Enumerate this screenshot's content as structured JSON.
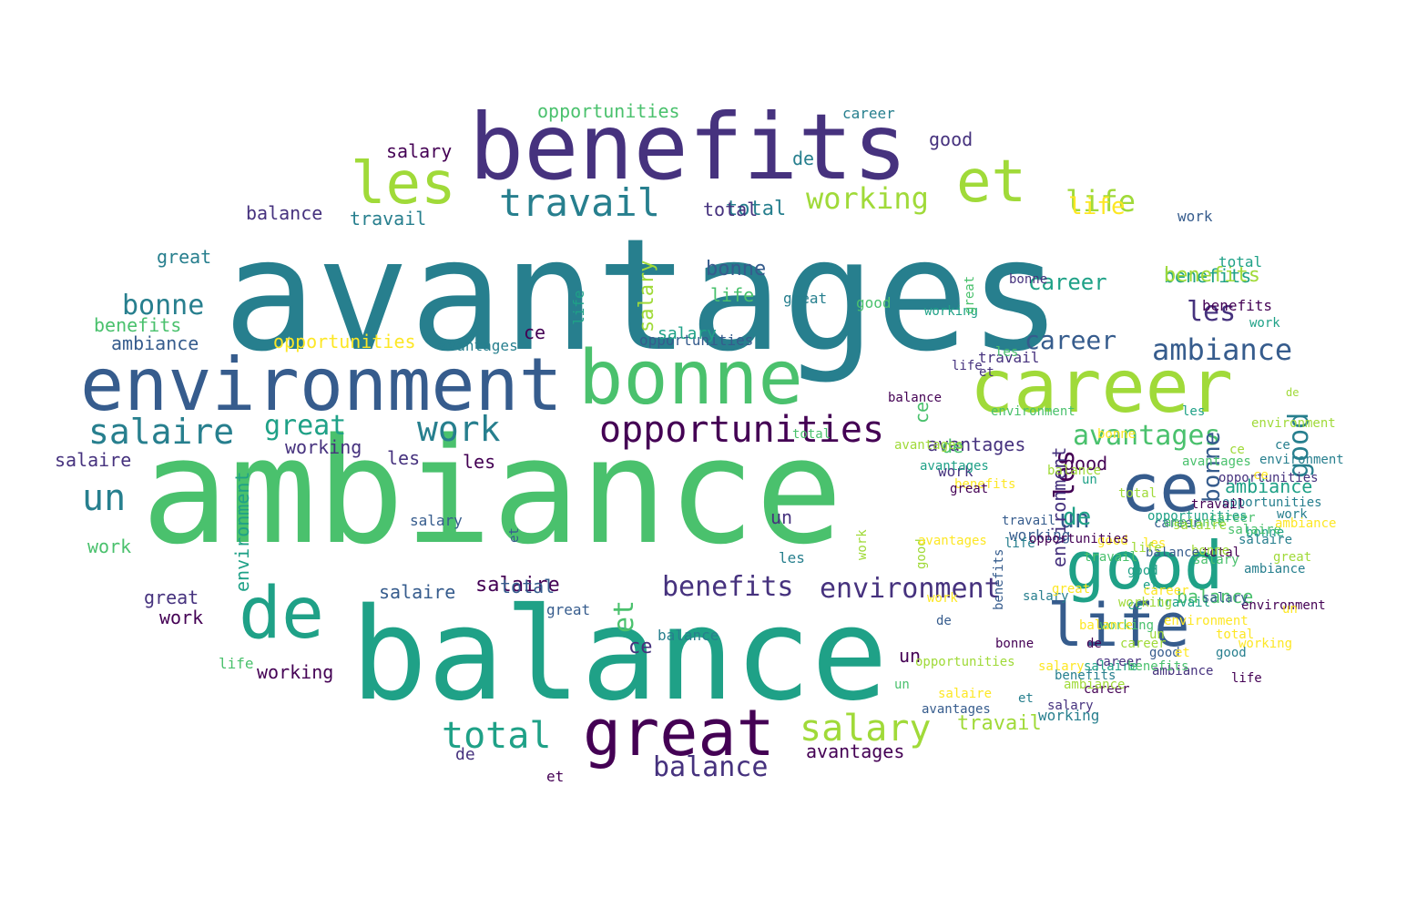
{
  "palette": [
    "#440154",
    "#46327e",
    "#365c8d",
    "#277f8e",
    "#1fa187",
    "#4ac16d",
    "#a0da39",
    "#fde725"
  ],
  "words": [
    {
      "text": "avantages",
      "c": 3
    },
    {
      "text": "ambiance",
      "c": 5
    },
    {
      "text": "balance",
      "c": 4
    },
    {
      "text": "benefits",
      "c": 1
    },
    {
      "text": "environment",
      "c": 2
    },
    {
      "text": "bonne",
      "c": 5
    },
    {
      "text": "career",
      "c": 6
    },
    {
      "text": "great",
      "c": 0
    },
    {
      "text": "good",
      "c": 4
    },
    {
      "text": "life",
      "c": 2
    },
    {
      "text": "ce",
      "c": 2
    },
    {
      "text": "de",
      "c": 4
    },
    {
      "text": "les",
      "c": 6
    },
    {
      "text": "et",
      "c": 6
    },
    {
      "text": "opportunities",
      "c": 0
    },
    {
      "text": "travail",
      "c": 3
    },
    {
      "text": "work",
      "c": 3
    },
    {
      "text": "salaire",
      "c": 3
    },
    {
      "text": "salary",
      "c": 6
    },
    {
      "text": "total",
      "c": 4
    },
    {
      "text": "working",
      "c": 6
    },
    {
      "text": "un",
      "c": 3
    },
    {
      "text": "ambiance",
      "c": 2
    },
    {
      "text": "avantages",
      "c": 5
    },
    {
      "text": "bonne",
      "c": 2
    },
    {
      "text": "life",
      "c": 6
    },
    {
      "text": "good",
      "c": 3
    },
    {
      "text": "career",
      "c": 2
    },
    {
      "text": "benefits",
      "c": 1
    },
    {
      "text": "environment",
      "c": 1
    },
    {
      "text": "les",
      "c": 1
    },
    {
      "text": "salaire",
      "c": 0
    },
    {
      "text": "salary",
      "c": 6
    },
    {
      "text": "opportunities",
      "c": 5
    },
    {
      "text": "travail",
      "c": 6
    },
    {
      "text": "work",
      "c": 5
    },
    {
      "text": "great",
      "c": 4
    },
    {
      "text": "balance",
      "c": 1
    },
    {
      "text": "total",
      "c": 3
    },
    {
      "text": "working",
      "c": 1
    },
    {
      "text": "avantages",
      "c": 1
    },
    {
      "text": "benefits",
      "c": 5
    },
    {
      "text": "career",
      "c": 4
    },
    {
      "text": "et",
      "c": 5
    },
    {
      "text": "un",
      "c": 2
    },
    {
      "text": "life",
      "c": 5
    },
    {
      "text": "les",
      "c": 0
    },
    {
      "text": "salary",
      "c": 0
    },
    {
      "text": "good",
      "c": 1
    },
    {
      "text": "balance",
      "c": 1
    },
    {
      "text": "de",
      "c": 3
    },
    {
      "text": "ce",
      "c": 0
    },
    {
      "text": "great",
      "c": 3
    },
    {
      "text": "work",
      "c": 0
    },
    {
      "text": "total",
      "c": 1
    },
    {
      "text": "bonne",
      "c": 3
    },
    {
      "text": "salaire",
      "c": 2
    },
    {
      "text": "ambiance",
      "c": 2
    },
    {
      "text": "environment",
      "c": 4
    },
    {
      "text": "opportunities",
      "c": 2
    },
    {
      "text": "career",
      "c": 3
    },
    {
      "text": "working",
      "c": 0
    },
    {
      "text": "avantages",
      "c": 0
    },
    {
      "text": "benefits",
      "c": 4
    },
    {
      "text": "travail",
      "c": 3
    },
    {
      "text": "salary",
      "c": 5
    },
    {
      "text": "good",
      "c": 0
    },
    {
      "text": "un",
      "c": 1
    },
    {
      "text": "les",
      "c": 0
    },
    {
      "text": "life",
      "c": 7
    },
    {
      "text": "de",
      "c": 4
    },
    {
      "text": "et",
      "c": 4
    },
    {
      "text": "ce",
      "c": 3
    },
    {
      "text": "great",
      "c": 1
    },
    {
      "text": "bonne",
      "c": 2
    },
    {
      "text": "work",
      "c": 2
    },
    {
      "text": "balance",
      "c": 5
    },
    {
      "text": "salaire",
      "c": 3
    },
    {
      "text": "total",
      "c": 2
    },
    {
      "text": "ambiance",
      "c": 4
    },
    {
      "text": "environment",
      "c": 1
    },
    {
      "text": "career",
      "c": 2
    },
    {
      "text": "salary",
      "c": 1
    },
    {
      "text": "working",
      "c": 2
    },
    {
      "text": "opportunities",
      "c": 7
    },
    {
      "text": "avantages",
      "c": 3
    },
    {
      "text": "benefits",
      "c": 6
    },
    {
      "text": "great",
      "c": 2
    },
    {
      "text": "good",
      "c": 2
    },
    {
      "text": "les",
      "c": 1
    },
    {
      "text": "life",
      "c": 5
    },
    {
      "text": "work",
      "c": 4
    },
    {
      "text": "travail",
      "c": 1
    },
    {
      "text": "un",
      "c": 0
    },
    {
      "text": "et",
      "c": 2
    },
    {
      "text": "de",
      "c": 5
    },
    {
      "text": "ce",
      "c": 5
    },
    {
      "text": "bonne",
      "c": 4
    },
    {
      "text": "salaire",
      "c": 1
    },
    {
      "text": "career",
      "c": 5
    },
    {
      "text": "balance",
      "c": 3
    },
    {
      "text": "total",
      "c": 4
    },
    {
      "text": "ambiance",
      "c": 3
    },
    {
      "text": "environment",
      "c": 6
    },
    {
      "text": "salary",
      "c": 4
    },
    {
      "text": "opportunities",
      "c": 1
    },
    {
      "text": "working",
      "c": 3
    },
    {
      "text": "avantages",
      "c": 6
    },
    {
      "text": "benefits",
      "c": 0
    },
    {
      "text": "great",
      "c": 3
    },
    {
      "text": "good",
      "c": 5
    },
    {
      "text": "life",
      "c": 4
    },
    {
      "text": "les",
      "c": 3
    },
    {
      "text": "work",
      "c": 1
    },
    {
      "text": "travail",
      "c": 5
    },
    {
      "text": "un",
      "c": 6
    },
    {
      "text": "de",
      "c": 1
    },
    {
      "text": "et",
      "c": 0
    },
    {
      "text": "ce",
      "c": 1
    },
    {
      "text": "bonne",
      "c": 1
    },
    {
      "text": "salaire",
      "c": 4
    },
    {
      "text": "career",
      "c": 0
    },
    {
      "text": "balance",
      "c": 6
    },
    {
      "text": "total",
      "c": 0
    },
    {
      "text": "ambiance",
      "c": 5
    },
    {
      "text": "environment",
      "c": 3
    },
    {
      "text": "salary",
      "c": 2
    },
    {
      "text": "opportunities",
      "c": 3
    },
    {
      "text": "working",
      "c": 4
    },
    {
      "text": "avantages",
      "c": 4
    },
    {
      "text": "benefits",
      "c": 2
    },
    {
      "text": "great",
      "c": 5
    },
    {
      "text": "good",
      "c": 6
    },
    {
      "text": "life",
      "c": 3
    },
    {
      "text": "les",
      "c": 5
    },
    {
      "text": "work",
      "c": 6
    },
    {
      "text": "travail",
      "c": 2
    },
    {
      "text": "un",
      "c": 4
    },
    {
      "text": "de",
      "c": 0
    },
    {
      "text": "et",
      "c": 3
    },
    {
      "text": "ce",
      "c": 4
    },
    {
      "text": "bonne",
      "c": 0
    },
    {
      "text": "salaire",
      "c": 5
    },
    {
      "text": "career",
      "c": 1
    },
    {
      "text": "balance",
      "c": 0
    },
    {
      "text": "total",
      "c": 5
    },
    {
      "text": "ambiance",
      "c": 6
    },
    {
      "text": "environment",
      "c": 5
    },
    {
      "text": "salary",
      "c": 3
    },
    {
      "text": "opportunities",
      "c": 4
    },
    {
      "text": "working",
      "c": 5
    },
    {
      "text": "avantages",
      "c": 2
    },
    {
      "text": "benefits",
      "c": 3
    },
    {
      "text": "great",
      "c": 6
    },
    {
      "text": "good",
      "c": 4
    },
    {
      "text": "life",
      "c": 1
    },
    {
      "text": "les",
      "c": 4
    },
    {
      "text": "work",
      "c": 7
    },
    {
      "text": "travail",
      "c": 4
    },
    {
      "text": "un",
      "c": 5
    },
    {
      "text": "de",
      "c": 2
    },
    {
      "text": "et",
      "c": 1
    },
    {
      "text": "ce",
      "c": 6
    },
    {
      "text": "bonne",
      "c": 6
    },
    {
      "text": "salaire",
      "c": 6
    },
    {
      "text": "career",
      "c": 6
    },
    {
      "text": "balance",
      "c": 2
    },
    {
      "text": "total",
      "c": 6
    },
    {
      "text": "ambiance",
      "c": 1
    },
    {
      "text": "environment",
      "c": 0
    },
    {
      "text": "salary",
      "c": 7
    },
    {
      "text": "opportunities",
      "c": 6
    },
    {
      "text": "working",
      "c": 6
    },
    {
      "text": "avantages",
      "c": 5
    },
    {
      "text": "benefits",
      "c": 7
    },
    {
      "text": "great",
      "c": 0
    },
    {
      "text": "good",
      "c": 7
    },
    {
      "text": "life",
      "c": 0
    },
    {
      "text": "les",
      "c": 7
    },
    {
      "text": "work",
      "c": 3
    },
    {
      "text": "travail",
      "c": 0
    },
    {
      "text": "un",
      "c": 7
    },
    {
      "text": "de",
      "c": 6
    },
    {
      "text": "et",
      "c": 7
    },
    {
      "text": "ce",
      "c": 7
    },
    {
      "text": "bonne",
      "c": 7
    },
    {
      "text": "salaire",
      "c": 7
    },
    {
      "text": "career",
      "c": 7
    },
    {
      "text": "balance",
      "c": 7
    },
    {
      "text": "total",
      "c": 7
    },
    {
      "text": "ambiance",
      "c": 7
    },
    {
      "text": "environment",
      "c": 7
    },
    {
      "text": "opportunities",
      "c": 0
    },
    {
      "text": "working",
      "c": 7
    },
    {
      "text": "avantages",
      "c": 7
    },
    {
      "text": "benefits",
      "c": 5
    },
    {
      "text": "great",
      "c": 7
    },
    {
      "text": "good",
      "c": 3
    },
    {
      "text": "life",
      "c": 6
    },
    {
      "text": "salary",
      "c": 2
    },
    {
      "text": "work",
      "c": 4
    },
    {
      "text": "et",
      "c": 5
    },
    {
      "text": "de",
      "c": 3
    },
    {
      "text": "un",
      "c": 2
    },
    {
      "text": "ce",
      "c": 3
    },
    {
      "text": "total",
      "c": 3
    },
    {
      "text": "les",
      "c": 2
    }
  ]
}
